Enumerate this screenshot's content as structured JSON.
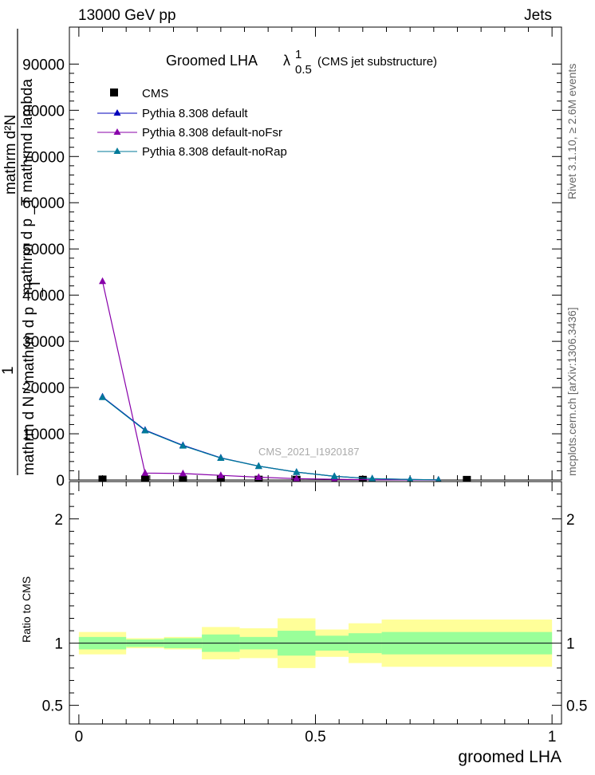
{
  "header": {
    "left": "13000 GeV pp",
    "right": "Jets",
    "side_top": "Rivet 3.1.10, ≥ 2.6M events",
    "side_bottom": "mcplots.cern.ch [arXiv:1306.3436]",
    "watermark": "CMS_2021_I1920187"
  },
  "title": {
    "main": "Groomed LHA",
    "lambda": "λ",
    "sup": "1",
    "sub": "0.5",
    "extra": "(CMS jet substructure)"
  },
  "y_label_parts": {
    "frac_num": "1",
    "upper_text": "mathrm d²N",
    "upper_sub": "mathrm d p  _T  mathrmd lambda",
    "lower_text": "mathrm d N / mathrm d p",
    "lower_sub": "_T"
  },
  "ratio_label": "Ratio to CMS",
  "x_label": "groomed LHA",
  "colors": {
    "cms": "#000000",
    "default": "#0000bb",
    "noFsr": "#8800aa",
    "noRap": "#007a99",
    "band_inner": "#99ff99",
    "band_outer": "#ffff99"
  },
  "chart_data": {
    "type": "line",
    "main_panel": {
      "ylim": [
        0,
        98000
      ],
      "yticks": [
        0,
        10000,
        20000,
        30000,
        40000,
        50000,
        60000,
        70000,
        80000,
        90000
      ],
      "ytick_labels": [
        "0",
        "10000",
        "20000",
        "30000",
        "40000",
        "50000",
        "60000",
        "70000",
        "80000",
        "90000"
      ],
      "xlim": [
        -0.02,
        1.02
      ],
      "legend_position": "top-left",
      "series": [
        {
          "name": "CMS",
          "marker": "square",
          "x": [
            0.05,
            0.14,
            0.22,
            0.3,
            0.38,
            0.46,
            0.6,
            0.82
          ],
          "y": [
            100,
            100,
            100,
            80,
            60,
            40,
            30,
            20
          ]
        },
        {
          "name": "Pythia 8.308 default",
          "marker": "triangle",
          "x": [
            0.05,
            0.14,
            0.22,
            0.3,
            0.38,
            0.46,
            0.54,
            0.62,
            0.7,
            0.76
          ],
          "y": [
            18000,
            10800,
            7500,
            4800,
            3000,
            1700,
            800,
            300,
            100,
            30
          ]
        },
        {
          "name": "Pythia 8.308 default-noFsr",
          "marker": "triangle",
          "x": [
            0.05,
            0.14,
            0.22,
            0.3,
            0.38,
            0.46,
            0.54,
            0.62,
            0.7,
            0.76
          ],
          "y": [
            43000,
            1500,
            1400,
            1000,
            600,
            300,
            150,
            60,
            20,
            5
          ]
        },
        {
          "name": "Pythia 8.308 default-noRap",
          "marker": "triangle",
          "x": [
            0.05,
            0.14,
            0.22,
            0.3,
            0.38,
            0.46,
            0.54,
            0.62,
            0.7,
            0.76
          ],
          "y": [
            17900,
            10700,
            7400,
            4750,
            3000,
            1700,
            800,
            300,
            100,
            30
          ]
        }
      ]
    },
    "ratio_panel": {
      "ylim": [
        0.35,
        2.3
      ],
      "yticks": [
        0.5,
        1,
        2
      ],
      "ytick_labels": [
        "0.5",
        "1",
        "2"
      ],
      "xticks": [
        0,
        0.5,
        1
      ],
      "xtick_labels": [
        "0",
        "0.5",
        "1"
      ],
      "bins": [
        {
          "lo": 0.0,
          "hi": 0.1,
          "inner": [
            0.95,
            1.05
          ],
          "outer": [
            0.91,
            1.09
          ]
        },
        {
          "lo": 0.1,
          "hi": 0.18,
          "inner": [
            0.97,
            1.03
          ],
          "outer": [
            0.96,
            1.04
          ]
        },
        {
          "lo": 0.18,
          "hi": 0.26,
          "inner": [
            0.96,
            1.04
          ],
          "outer": [
            0.95,
            1.05
          ]
        },
        {
          "lo": 0.26,
          "hi": 0.34,
          "inner": [
            0.93,
            1.07
          ],
          "outer": [
            0.87,
            1.13
          ]
        },
        {
          "lo": 0.34,
          "hi": 0.42,
          "inner": [
            0.95,
            1.05
          ],
          "outer": [
            0.88,
            1.12
          ]
        },
        {
          "lo": 0.42,
          "hi": 0.5,
          "inner": [
            0.9,
            1.1
          ],
          "outer": [
            0.8,
            1.2
          ]
        },
        {
          "lo": 0.5,
          "hi": 0.57,
          "inner": [
            0.94,
            1.06
          ],
          "outer": [
            0.89,
            1.11
          ]
        },
        {
          "lo": 0.57,
          "hi": 0.64,
          "inner": [
            0.92,
            1.08
          ],
          "outer": [
            0.84,
            1.16
          ]
        },
        {
          "lo": 0.64,
          "hi": 1.0,
          "inner": [
            0.91,
            1.09
          ],
          "outer": [
            0.81,
            1.19
          ]
        }
      ],
      "series": [
        {
          "name": "Pythia 8.308 default",
          "value": 1.0
        },
        {
          "name": "Pythia 8.308 default-noFsr",
          "value": 1.0
        },
        {
          "name": "Pythia 8.308 default-noRap",
          "value": 1.0
        }
      ]
    }
  }
}
